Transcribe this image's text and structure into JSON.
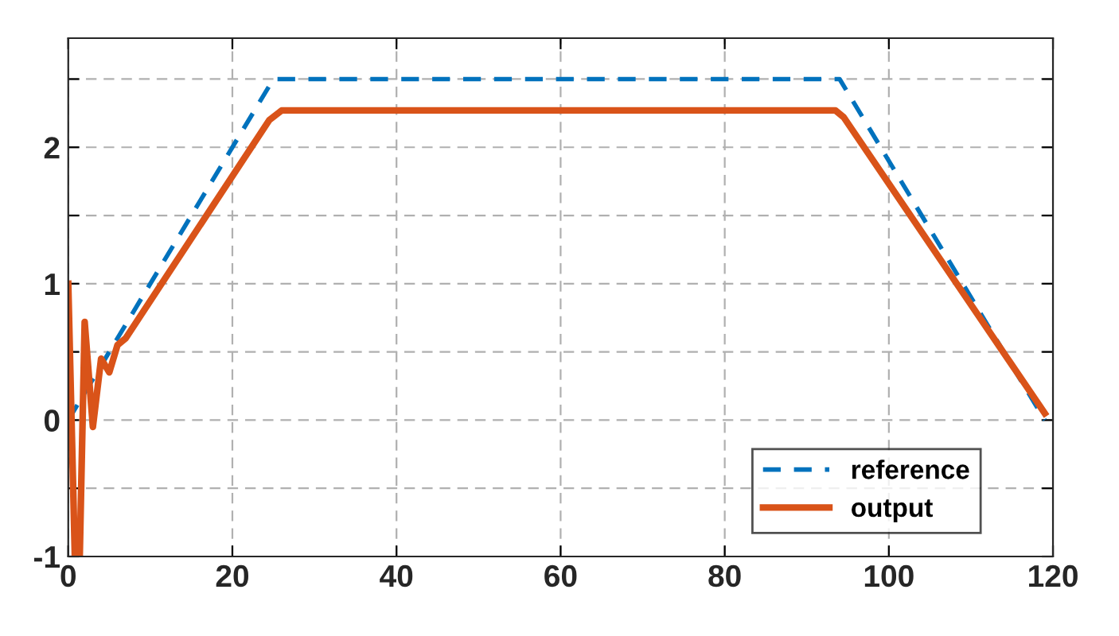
{
  "chart_data": {
    "type": "line",
    "xlim": [
      0,
      120
    ],
    "xticks": [
      0,
      20,
      40,
      60,
      80,
      100,
      120
    ],
    "ylim": [
      -1,
      2.8
    ],
    "yticks": [
      -1,
      {
        "value": -0.5,
        "label": null
      },
      0,
      {
        "value": 0.5,
        "label": null
      },
      1,
      {
        "value": 1.5,
        "label": null
      },
      2,
      {
        "value": 2.5,
        "label": null
      }
    ],
    "grid": true,
    "legend": "bottom right",
    "series": [
      {
        "name": "reference",
        "color": "#0072bd",
        "line_style": "dashed",
        "x": [
          0,
          25,
          94,
          119
        ],
        "values": [
          0,
          2.5,
          2.5,
          0
        ]
      },
      {
        "name": "output",
        "color": "#d95319",
        "line_style": "solid",
        "x": [
          0,
          0.8,
          1.4,
          2,
          3,
          4,
          5,
          6,
          7,
          24.5,
          26,
          93.5,
          94.5,
          119
        ],
        "values": [
          1,
          -1,
          -1,
          0.72,
          -0.05,
          0.45,
          0.35,
          0.55,
          0.6,
          2.2,
          2.27,
          2.27,
          2.22,
          0.05
        ]
      }
    ]
  }
}
